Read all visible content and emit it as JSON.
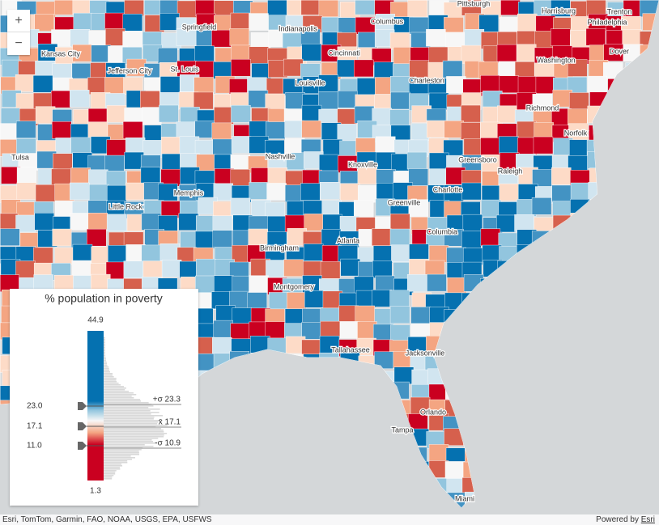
{
  "zoom": {
    "in": "+",
    "out": "−"
  },
  "cities": [
    "Pittsburgh",
    "Harrisburg",
    "Trenton",
    "Philadelphia",
    "Springfield",
    "Indianapolis",
    "Columbus",
    "Kansas City",
    "Cincinnati",
    "Dover",
    "Jefferson City",
    "St. Louis",
    "Washington",
    "Louisville",
    "Charleston",
    "Richmond",
    "Norfolk",
    "Tulsa",
    "Nashville",
    "Knoxville",
    "Greensboro",
    "Raleigh",
    "Memphis",
    "Charlotte",
    "Little Rock",
    "Greenville",
    "Columbia",
    "Birmingham",
    "Atlanta",
    "Montgomery",
    "Tallahassee",
    "Jacksonville",
    "Orlando",
    "Tampa",
    "Miami"
  ],
  "legend": {
    "title": "% population in poverty",
    "max": "44.9",
    "min": "1.3",
    "handles": [
      "23.0",
      "17.1",
      "11.0"
    ],
    "stats": [
      "+σ 23.3",
      "x̄ 17.1",
      "-σ 10.9"
    ]
  },
  "footer": {
    "attribution": "Esri, TomTom, Garmin, FAO, NOAA, USGS, EPA, USFWS",
    "powered": "Powered by",
    "link": "Esri"
  }
}
